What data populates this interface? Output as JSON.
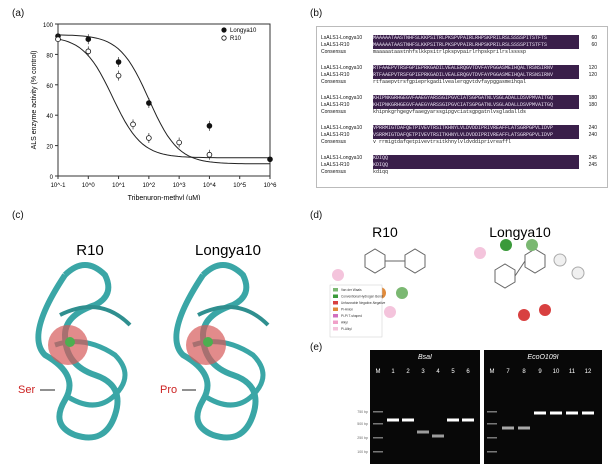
{
  "panels": {
    "a": "(a)",
    "b": "(b)",
    "c": "(c)",
    "d": "(d)",
    "e": "(e)"
  },
  "chart_data": {
    "type": "scatter",
    "xlabel": "Tribenuron-methyl (uM)",
    "ylabel": "ALS enzyme activity (% control)",
    "xscale": "log",
    "xlim": [
      0.1,
      1000000
    ],
    "ylim": [
      0,
      100
    ],
    "xticks": [
      "10^-1",
      "10^0",
      "10^1",
      "10^2",
      "10^3",
      "10^4",
      "10^5",
      "10^6"
    ],
    "yticks": [
      "0",
      "20",
      "40",
      "60",
      "80",
      "100"
    ],
    "legend_position": "top-right",
    "series": [
      {
        "name": "Longya10",
        "marker": "filled-circle",
        "x": [
          0.1,
          1,
          10,
          100,
          10000,
          1000000
        ],
        "y": [
          92,
          90,
          75,
          48,
          33,
          11
        ]
      },
      {
        "name": "R10",
        "marker": "open-circle",
        "x": [
          0.1,
          1,
          10,
          30,
          100,
          1000,
          10000
        ],
        "y": [
          90,
          82,
          66,
          34,
          25,
          22,
          14
        ]
      }
    ]
  },
  "alignment": {
    "blocks": [
      {
        "rows": [
          {
            "label": "LsALS1-Longya10",
            "seq": "MAAAAATAASTNHFSLKKPSITRLPKSPVPAIRLRHPSKPRILRSLSSSSPITSTFTS",
            "num": "60"
          },
          {
            "label": "LsALS1-R10",
            "seq": "MAAAAATAASTNHFSLKKPSITRLPKSPVPAIRLRHPSKPRILRSLSSSSPITSTFTS",
            "num": "60"
          },
          {
            "label": "Consensus",
            "seq": "maaaaataastnhfslkkpsitrlpkspvpairlrhpskprilrslssssp",
            "num": ""
          }
        ]
      },
      {
        "rows": [
          {
            "label": "LsALS1-Longya10",
            "seq": "RTFAAEPVTRSFGPIEPRKGADILVEALERQGVTDVFAYPGGASMEIHQALTRSNSIRNV",
            "num": "120"
          },
          {
            "label": "LsALS1-R10",
            "seq": "RTFAAEPVTRSFGPIEPRKGADILVEALERQGVTDVFAYPGGASMEIHQALTRSNSIRNV",
            "num": "120"
          },
          {
            "label": "Consensus",
            "seq": "rtfaaepvtrsfgpieprkgadilvealerqgvtdvfaypggasmeihqal",
            "num": ""
          }
        ]
      },
      {
        "rows": [
          {
            "label": "LsALS1-Longya10",
            "seq": "KHIPNKGRHGEGVFAAEGYARSSGIPGVCIATSGPGATNLVSGLADALLDSVPMVAITGQ",
            "num": "180"
          },
          {
            "label": "LsALS1-R10",
            "seq": "KHIPNKGRHGEGVFAAEGYARSSGIPGVCIATSGPGATNLVSGLADALLDSVPMVAITGQ",
            "num": "180"
          },
          {
            "label": "Consensus",
            "seq": "khipnkgrhgegvfaaegyarssgipgvciatsgpgatnlvsgladallds",
            "num": ""
          }
        ]
      },
      {
        "rows": [
          {
            "label": "LsALS1-Longya10",
            "seq": "VPRRMIGTDAFQETPIVEVTRSITKHNYLVLDVDDIPRIVREAFFLATSGRPGPVLIDVP",
            "num": "240"
          },
          {
            "label": "LsALS1-R10",
            "seq": "VSRRMIGTDAFQETPIVEVTRSITKHNYLVLDVDDIPRIVREAFFLATSGRPGPVLIDVP",
            "num": "240"
          },
          {
            "label": "Consensus",
            "seq": "v rrmigtdafqetpivevtrsitkhnylvldvddiprivreaffl",
            "num": ""
          }
        ]
      },
      {
        "rows": [
          {
            "label": "LsALS1-Longya10",
            "seq": "KDIQQ",
            "num": "245"
          },
          {
            "label": "LsALS1-R10",
            "seq": "KDIQQ",
            "num": "245"
          },
          {
            "label": "Consensus",
            "seq": "kdiqq",
            "num": ""
          }
        ]
      }
    ]
  },
  "structures": {
    "left_title": "R10",
    "right_title": "Longya10",
    "left_residue": "Ser",
    "right_residue": "Pro"
  },
  "interaction": {
    "left_title": "R10",
    "right_title": "Longya10",
    "legend": [
      "Van der Waals",
      "Conventional Hydrogen Bond",
      "Unfavorable Negative-Negative",
      "Pi-Anion",
      "Pi-Pi T-shaped",
      "Alkyl",
      "Pi-Alkyl"
    ],
    "colors": [
      "#7bb872",
      "#3a9a3a",
      "#d84040",
      "#e08a3a",
      "#d070c0",
      "#f0a0c8",
      "#f4c4dc"
    ]
  },
  "gel": {
    "left_enzyme": "BsaI",
    "right_enzyme": "EcoO109I",
    "left_lanes": [
      "M",
      "1",
      "2",
      "3",
      "4",
      "5",
      "6"
    ],
    "right_lanes": [
      "M",
      "7",
      "8",
      "9",
      "10",
      "11",
      "12"
    ],
    "ladder_labels": [
      "750 bp",
      "500 bp",
      "250 bp",
      "100 bp"
    ]
  }
}
